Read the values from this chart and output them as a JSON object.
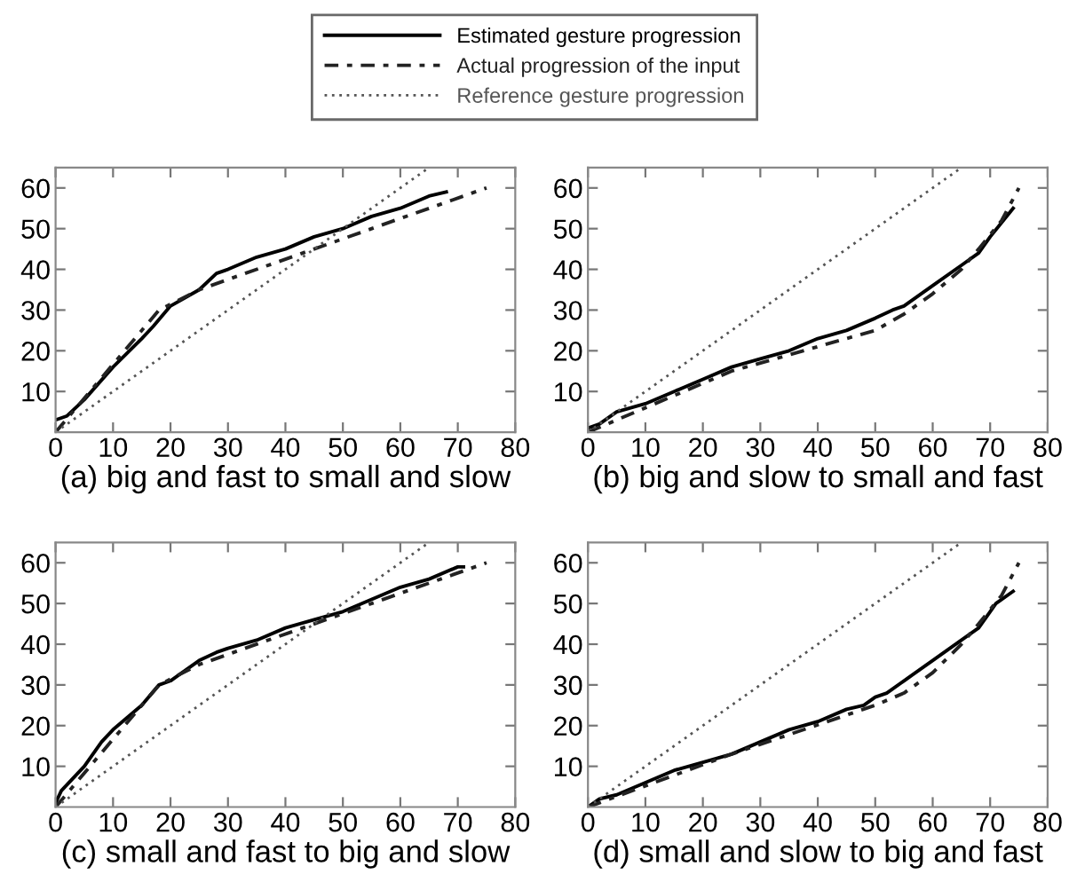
{
  "chart_data": [
    {
      "type": "line",
      "xlabel": "(a) big and fast to small and slow",
      "xlim": [
        0,
        80
      ],
      "ylim": [
        0,
        65
      ],
      "xticks": [
        0,
        10,
        20,
        30,
        40,
        50,
        60,
        70,
        80
      ],
      "yticks": [
        10,
        20,
        30,
        40,
        50,
        60
      ],
      "grid": false,
      "legend": "top",
      "series": [
        {
          "name": "Estimated gesture progression",
          "color": "#000000",
          "line_style": "solid",
          "x": [
            0,
            2,
            5,
            10,
            15,
            17,
            20,
            25,
            28,
            30,
            35,
            40,
            45,
            50,
            55,
            60,
            65,
            68
          ],
          "values": [
            3,
            4,
            8,
            16,
            23,
            26,
            31,
            35,
            39,
            40,
            43,
            45,
            48,
            50,
            53,
            55,
            58,
            59
          ]
        },
        {
          "name": "Actual progression of the input",
          "color": "#222222",
          "line_style": "dashdot",
          "x": [
            0,
            18,
            25,
            45,
            75
          ],
          "values": [
            0,
            30,
            35,
            45,
            60
          ]
        },
        {
          "name": "Reference gesture progression",
          "color": "#555555",
          "line_style": "dotted",
          "x": [
            0,
            65
          ],
          "values": [
            0,
            65
          ]
        }
      ]
    },
    {
      "type": "line",
      "xlabel": "(b) big and slow to small and fast",
      "xlim": [
        0,
        80
      ],
      "ylim": [
        0,
        65
      ],
      "xticks": [
        0,
        10,
        20,
        30,
        40,
        50,
        60,
        70,
        80
      ],
      "yticks": [
        10,
        20,
        30,
        40,
        50,
        60
      ],
      "grid": false,
      "series": [
        {
          "color": "#000000",
          "line_style": "solid",
          "x": [
            0,
            2,
            5,
            10,
            15,
            20,
            25,
            30,
            35,
            40,
            45,
            50,
            53,
            55,
            60,
            65,
            68,
            70,
            74
          ],
          "values": [
            1,
            2,
            5,
            7,
            10,
            13,
            16,
            18,
            20,
            23,
            25,
            28,
            30,
            31,
            36,
            41,
            44,
            48,
            55
          ]
        },
        {
          "color": "#222222",
          "line_style": "dashdot",
          "x": [
            0,
            25,
            50,
            55,
            60,
            65,
            68,
            72,
            75
          ],
          "values": [
            0,
            15,
            25,
            29,
            34,
            40,
            45,
            52,
            60
          ]
        },
        {
          "color": "#555555",
          "line_style": "dotted",
          "x": [
            0,
            65
          ],
          "values": [
            0,
            65
          ]
        }
      ]
    },
    {
      "type": "line",
      "xlabel": "(c) small and fast to big and slow",
      "xlim": [
        0,
        80
      ],
      "ylim": [
        0,
        65
      ],
      "xticks": [
        0,
        10,
        20,
        30,
        40,
        50,
        60,
        70,
        80
      ],
      "yticks": [
        10,
        20,
        30,
        40,
        50,
        60
      ],
      "grid": false,
      "series": [
        {
          "color": "#000000",
          "line_style": "solid",
          "x": [
            0,
            1,
            3,
            5,
            8,
            10,
            15,
            18,
            20,
            25,
            28,
            30,
            35,
            40,
            45,
            50,
            55,
            60,
            65,
            70,
            71
          ],
          "values": [
            1,
            4,
            7,
            10,
            16,
            19,
            25,
            30,
            31,
            36,
            38,
            39,
            41,
            44,
            46,
            48,
            51,
            54,
            56,
            59,
            59
          ]
        },
        {
          "color": "#222222",
          "line_style": "dashdot",
          "x": [
            0,
            18,
            25,
            45,
            75
          ],
          "values": [
            0,
            30,
            35,
            45,
            60
          ]
        },
        {
          "color": "#555555",
          "line_style": "dotted",
          "x": [
            0,
            65
          ],
          "values": [
            0,
            65
          ]
        }
      ]
    },
    {
      "type": "line",
      "xlabel": "(d) small and slow to big and fast",
      "xlim": [
        0,
        80
      ],
      "ylim": [
        0,
        65
      ],
      "xticks": [
        0,
        10,
        20,
        30,
        40,
        50,
        60,
        70,
        80
      ],
      "yticks": [
        10,
        20,
        30,
        40,
        50,
        60
      ],
      "grid": false,
      "series": [
        {
          "color": "#000000",
          "line_style": "solid",
          "x": [
            0,
            2,
            5,
            10,
            15,
            20,
            25,
            30,
            35,
            40,
            45,
            48,
            50,
            52,
            55,
            60,
            65,
            68,
            70,
            71,
            74
          ],
          "values": [
            0,
            2,
            3,
            6,
            9,
            11,
            13,
            16,
            19,
            21,
            24,
            25,
            27,
            28,
            31,
            36,
            41,
            44,
            48,
            50,
            53
          ]
        },
        {
          "color": "#222222",
          "line_style": "dashdot",
          "x": [
            0,
            25,
            50,
            55,
            60,
            65,
            68,
            72,
            75
          ],
          "values": [
            0,
            13,
            25,
            28,
            33,
            40,
            45,
            52,
            60
          ]
        },
        {
          "color": "#555555",
          "line_style": "dotted",
          "x": [
            0,
            65
          ],
          "values": [
            0,
            65
          ]
        }
      ]
    }
  ]
}
